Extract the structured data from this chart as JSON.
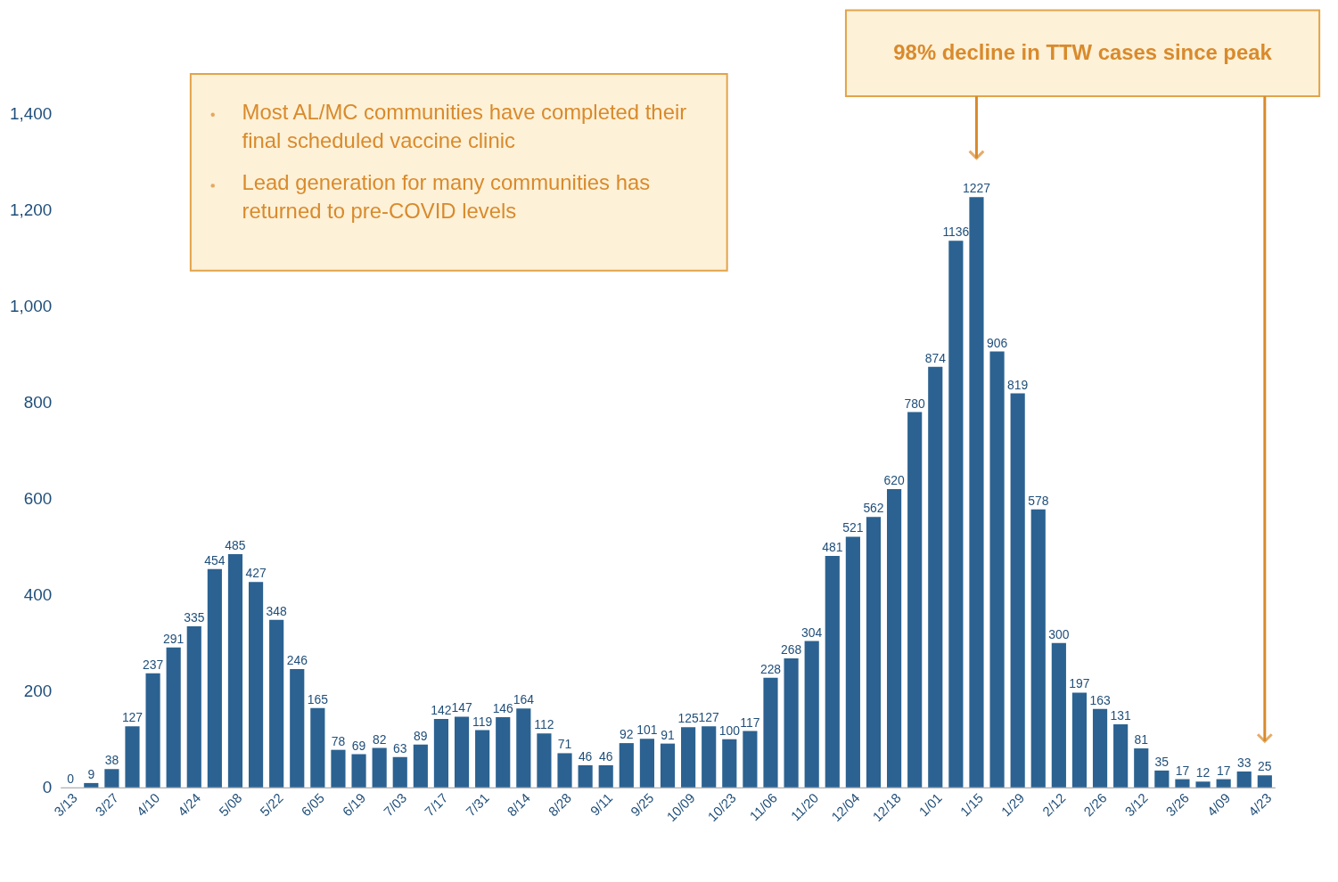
{
  "chart_data": {
    "type": "bar",
    "color": "#2b6291",
    "categories": [
      "3/13",
      null,
      "3/27",
      null,
      "4/10",
      null,
      "4/24",
      null,
      "5/08",
      null,
      "5/22",
      null,
      "6/05",
      null,
      "6/19",
      null,
      "7/03",
      null,
      "7/17",
      null,
      "7/31",
      null,
      "8/14",
      null,
      "8/28",
      null,
      "9/11",
      null,
      "9/25",
      null,
      "10/09",
      null,
      "10/23",
      null,
      "11/06",
      null,
      "11/20",
      null,
      "12/04",
      null,
      "12/18",
      null,
      "1/01",
      null,
      "1/15",
      null,
      "1/29",
      null,
      "2/12",
      null,
      "2/26",
      null,
      "3/12",
      null,
      "3/26",
      null,
      "4/09",
      null,
      "4/23"
    ],
    "values": [
      0,
      9,
      38,
      127,
      237,
      291,
      335,
      454,
      485,
      427,
      348,
      246,
      165,
      78,
      69,
      82,
      63,
      89,
      142,
      147,
      119,
      146,
      164,
      112,
      71,
      46,
      46,
      92,
      101,
      91,
      125,
      127,
      100,
      117,
      228,
      268,
      304,
      481,
      521,
      562,
      620,
      780,
      874,
      1136,
      1227,
      906,
      819,
      578,
      300,
      197,
      163,
      131,
      81,
      35,
      17,
      12,
      17,
      33,
      25
    ],
    "ylim": [
      0,
      1400
    ],
    "yticks": [
      0,
      {
        "value": 200,
        "label": "200"
      },
      {
        "value": 400,
        "label": "400"
      },
      {
        "value": 600,
        "label": "600"
      },
      {
        "value": 800,
        "label": "800"
      },
      {
        "value": 1000,
        "label": "1,000"
      },
      {
        "value": 1200,
        "label": "1,200"
      },
      {
        "value": 1400,
        "label": "1,400"
      }
    ],
    "grid": false,
    "data_labels": true,
    "annotations": [
      "Most AL/MC communities have completed their final scheduled vaccine clinic",
      "Lead generation for many communities has returned to pre-COVID levels",
      "98% decline in TTW cases since peak"
    ]
  }
}
